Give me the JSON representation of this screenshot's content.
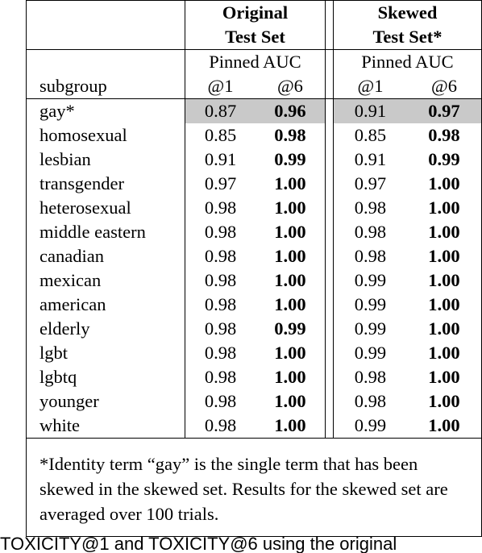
{
  "header": {
    "original": [
      "Original",
      "Test Set"
    ],
    "skewed": [
      "Skewed",
      "Test Set*"
    ],
    "metric_left": "Pinned AUC",
    "metric_right": "Pinned AUC",
    "subgroup_label": "subgroup",
    "at1_left": "@1",
    "at6_left": "@6",
    "at1_right": "@1",
    "at6_right": "@6"
  },
  "rows": [
    {
      "subgroup": "gay*",
      "o1": "0.87",
      "o6": "0.96",
      "s1": "0.91",
      "s6": "0.97",
      "highlighted": true
    },
    {
      "subgroup": "homosexual",
      "o1": "0.85",
      "o6": "0.98",
      "s1": "0.85",
      "s6": "0.98"
    },
    {
      "subgroup": "lesbian",
      "o1": "0.91",
      "o6": "0.99",
      "s1": "0.91",
      "s6": "0.99"
    },
    {
      "subgroup": "transgender",
      "o1": "0.97",
      "o6": "1.00",
      "s1": "0.97",
      "s6": "1.00"
    },
    {
      "subgroup": "heterosexual",
      "o1": "0.98",
      "o6": "1.00",
      "s1": "0.98",
      "s6": "1.00"
    },
    {
      "subgroup": "middle eastern",
      "o1": "0.98",
      "o6": "1.00",
      "s1": "0.98",
      "s6": "1.00"
    },
    {
      "subgroup": "canadian",
      "o1": "0.98",
      "o6": "1.00",
      "s1": "0.98",
      "s6": "1.00"
    },
    {
      "subgroup": "mexican",
      "o1": "0.98",
      "o6": "1.00",
      "s1": "0.99",
      "s6": "1.00"
    },
    {
      "subgroup": "american",
      "o1": "0.98",
      "o6": "1.00",
      "s1": "0.99",
      "s6": "1.00"
    },
    {
      "subgroup": "elderly",
      "o1": "0.98",
      "o6": "0.99",
      "s1": "0.99",
      "s6": "1.00"
    },
    {
      "subgroup": "lgbt",
      "o1": "0.98",
      "o6": "1.00",
      "s1": "0.99",
      "s6": "1.00"
    },
    {
      "subgroup": "lgbtq",
      "o1": "0.98",
      "o6": "1.00",
      "s1": "0.98",
      "s6": "1.00"
    },
    {
      "subgroup": "younger",
      "o1": "0.98",
      "o6": "1.00",
      "s1": "0.98",
      "s6": "1.00"
    },
    {
      "subgroup": "white",
      "o1": "0.98",
      "o6": "1.00",
      "s1": "0.99",
      "s6": "1.00"
    }
  ],
  "footnote": "*Identity term “gay” is the single term that has been skewed in the skewed set. Results for the skewed set are averaged over 100 trials.",
  "cut_off_text": "TOXICITY@1 and TOXICITY@6 using the original",
  "colors": {
    "highlight": "#c9c9c9",
    "text": "#000000"
  }
}
